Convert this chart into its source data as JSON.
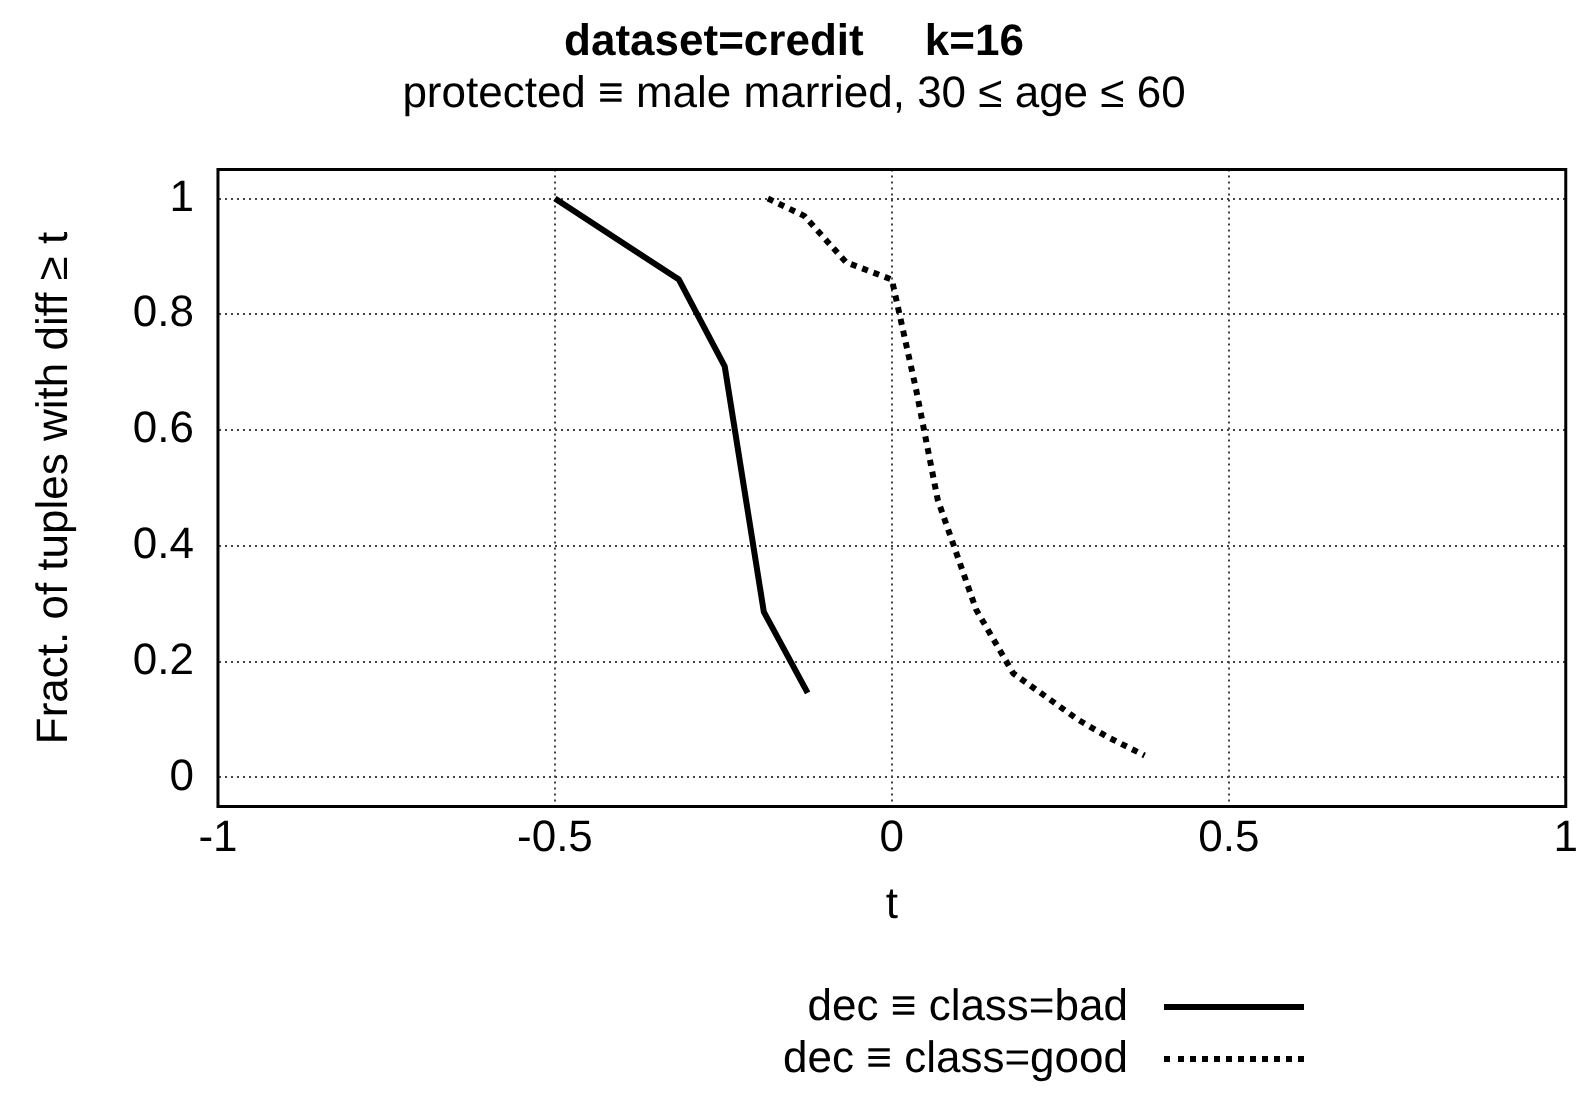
{
  "chart_data": {
    "type": "line",
    "title": "dataset=credit     k=16",
    "subtitle": "protected ≡ male married, 30 ≤ age ≤ 60",
    "xlabel": "t",
    "ylabel": "Fract. of tuples with diff ≥ t",
    "xlim": [
      -1,
      1
    ],
    "xticks": [
      -1,
      -0.5,
      0,
      0.5,
      1
    ],
    "ylim": [
      -0.05,
      1.05
    ],
    "yticks": [
      0,
      0.2,
      0.4,
      0.6,
      0.8,
      1
    ],
    "grid": true,
    "legend": "bottom",
    "marker": "none",
    "series": [
      {
        "name": "dec ≡ class=bad",
        "color": "#000000",
        "line_style": "solid",
        "x": [
          -0.5,
          -0.316,
          -0.248,
          -0.19,
          -0.125
        ],
        "values": [
          1,
          0.86,
          0.71,
          0.286,
          0.146
        ]
      },
      {
        "name": "dec ≡ class=good",
        "color": "#000000",
        "line_style": "dotted",
        "x": [
          -0.184,
          -0.13,
          -0.068,
          0,
          0.036,
          0.068,
          0.125,
          0.18,
          0.276,
          0.32,
          0.375
        ],
        "values": [
          1,
          0.97,
          0.89,
          0.86,
          0.67,
          0.48,
          0.29,
          0.18,
          0.1,
          0.07,
          0.038
        ]
      }
    ]
  }
}
